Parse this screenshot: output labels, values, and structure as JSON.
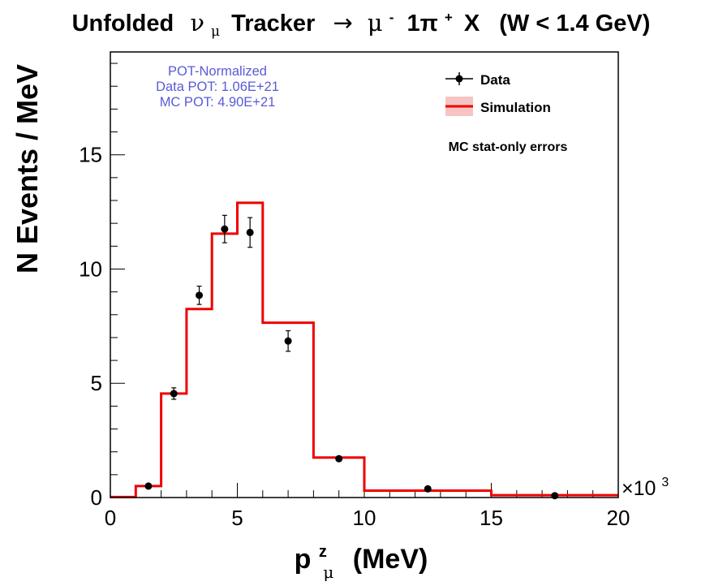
{
  "chart_data": {
    "type": "bar",
    "title": {
      "pre": "Unfolded",
      "nu": "ν",
      "nu_sub": "μ",
      "mid": "Tracker",
      "arrow": "→",
      "mu": "μ",
      "mu_sup": "-",
      "one_pi": "1π",
      "pi_sup": "+",
      "x": "X",
      "cut": "(W < 1.4 GeV)"
    },
    "xlabel": {
      "p": "p",
      "p_sup": "z",
      "p_sub": "μ",
      "unit": "(MeV)"
    },
    "ylabel": "N Events / MeV",
    "xlim": [
      0,
      20000
    ],
    "ylim": [
      0,
      19.5
    ],
    "x_multiplier": {
      "base": "×10",
      "exp": "3"
    },
    "x_ticks": [
      0,
      5000,
      10000,
      15000,
      20000
    ],
    "x_tick_labels": [
      "0",
      "5",
      "10",
      "15",
      "20"
    ],
    "y_ticks": [
      0,
      5,
      10,
      15
    ],
    "y_tick_labels": [
      "0",
      "5",
      "10",
      "15"
    ],
    "annotations": {
      "pot": [
        "POT-Normalized",
        "Data POT: 1.06E+21",
        "MC POT: 4.90E+21"
      ],
      "errors_note": "MC stat-only errors"
    },
    "legend": {
      "placement": "top-right",
      "entries": [
        {
          "label": "Data",
          "kind": "points"
        },
        {
          "label": "Simulation",
          "kind": "line-band"
        }
      ]
    },
    "bin_edges": [
      0,
      1000,
      2000,
      3000,
      4000,
      5000,
      6000,
      8000,
      10000,
      15000,
      20000
    ],
    "series": [
      {
        "name": "Simulation",
        "kind": "histogram",
        "color": "#ee0000",
        "band_color": "#f7c4c4",
        "values": [
          0.02,
          0.5,
          4.55,
          8.25,
          11.55,
          12.9,
          7.65,
          1.75,
          0.3,
          0.1
        ]
      },
      {
        "name": "Data",
        "kind": "points",
        "color": "#000000",
        "x": [
          1500,
          2500,
          3500,
          4500,
          5500,
          7000,
          9000,
          12500,
          17500
        ],
        "y": [
          0.5,
          4.55,
          8.85,
          11.75,
          11.6,
          6.85,
          1.7,
          0.38,
          0.08
        ],
        "err": [
          0.08,
          0.25,
          0.4,
          0.6,
          0.65,
          0.45,
          0.1,
          0.04,
          0.03
        ]
      }
    ]
  }
}
